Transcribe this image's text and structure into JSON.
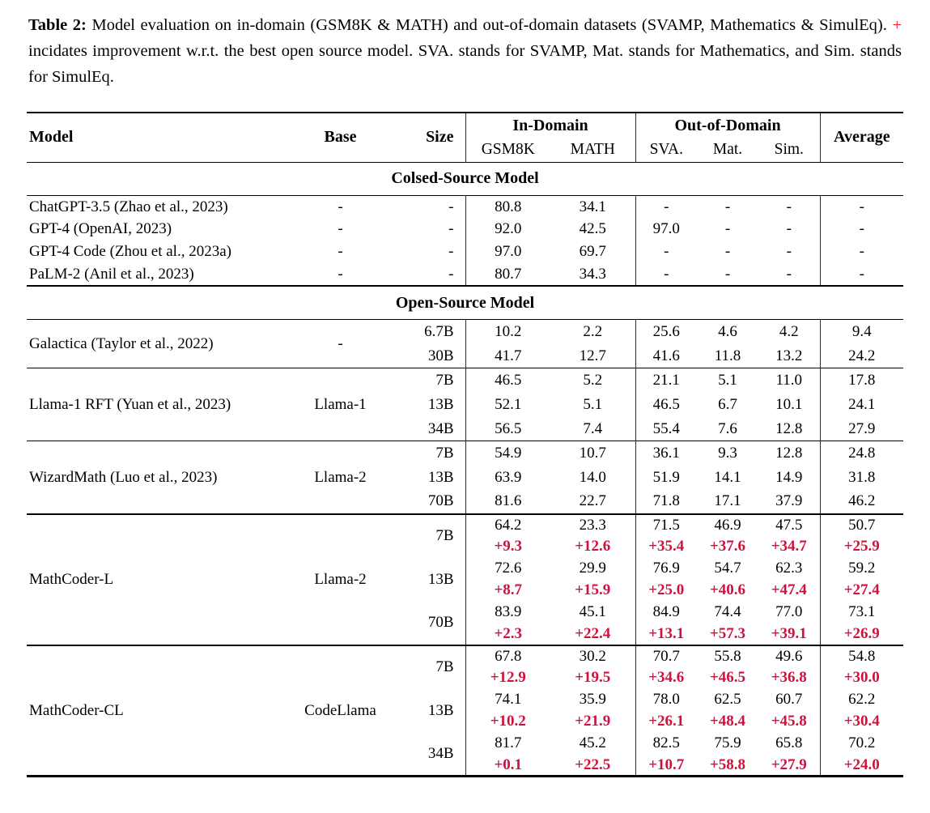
{
  "colors": {
    "delta_red": "#d0113d",
    "caption_plus_red": "#e8232a",
    "rule_black": "#000000"
  },
  "caption": {
    "label": "Table 2:",
    "text_before_plus": "Model evaluation on in-domain (GSM8K & MATH) and out-of-domain datasets (SVAMP, Mathematics & SimulEq).",
    "plus": "+",
    "text_after_plus": "incidates improvement w.r.t. the best open source model. SVA. stands for SVAMP, Mat. stands for Mathematics, and Sim. stands for SimulEq."
  },
  "table": {
    "header": {
      "model": "Model",
      "base": "Base",
      "size": "Size",
      "in_domain": "In-Domain",
      "out_of_domain": "Out-of-Domain",
      "average": "Average",
      "in_cols": [
        "GSM8K",
        "MATH"
      ],
      "out_cols": [
        "SVA.",
        "Mat.",
        "Sim."
      ]
    },
    "sections": [
      {
        "title": "Colsed-Source Model",
        "groups": [
          {
            "model": "ChatGPT-3.5 (Zhao et al., 2023)",
            "base": "-",
            "rows": [
              {
                "size": "-",
                "values": [
                  "80.8",
                  "34.1",
                  "-",
                  "-",
                  "-",
                  "-"
                ]
              }
            ]
          },
          {
            "model": "GPT-4 (OpenAI, 2023)",
            "base": "-",
            "rows": [
              {
                "size": "-",
                "values": [
                  "92.0",
                  "42.5",
                  "97.0",
                  "-",
                  "-",
                  "-"
                ]
              }
            ]
          },
          {
            "model": "GPT-4 Code (Zhou et al., 2023a)",
            "base": "-",
            "rows": [
              {
                "size": "-",
                "values": [
                  "97.0",
                  "69.7",
                  "-",
                  "-",
                  "-",
                  "-"
                ]
              }
            ]
          },
          {
            "model": "PaLM-2 (Anil et al., 2023)",
            "base": "-",
            "rows": [
              {
                "size": "-",
                "values": [
                  "80.7",
                  "34.3",
                  "-",
                  "-",
                  "-",
                  "-"
                ]
              }
            ]
          }
        ]
      },
      {
        "title": "Open-Source Model",
        "groups": [
          {
            "model": "Galactica (Taylor et al., 2022)",
            "base": "-",
            "rows": [
              {
                "size": "6.7B",
                "values": [
                  "10.2",
                  "2.2",
                  "25.6",
                  "4.6",
                  "4.2",
                  "9.4"
                ]
              },
              {
                "size": "30B",
                "values": [
                  "41.7",
                  "12.7",
                  "41.6",
                  "11.8",
                  "13.2",
                  "24.2"
                ]
              }
            ]
          },
          {
            "model": "Llama-1 RFT (Yuan et al., 2023)",
            "base": "Llama-1",
            "rows": [
              {
                "size": "7B",
                "values": [
                  "46.5",
                  "5.2",
                  "21.1",
                  "5.1",
                  "11.0",
                  "17.8"
                ]
              },
              {
                "size": "13B",
                "values": [
                  "52.1",
                  "5.1",
                  "46.5",
                  "6.7",
                  "10.1",
                  "24.1"
                ]
              },
              {
                "size": "34B",
                "values": [
                  "56.5",
                  "7.4",
                  "55.4",
                  "7.6",
                  "12.8",
                  "27.9"
                ]
              }
            ]
          },
          {
            "model": "WizardMath (Luo et al., 2023)",
            "base": "Llama-2",
            "rows": [
              {
                "size": "7B",
                "values": [
                  "54.9",
                  "10.7",
                  "36.1",
                  "9.3",
                  "12.8",
                  "24.8"
                ]
              },
              {
                "size": "13B",
                "values": [
                  "63.9",
                  "14.0",
                  "51.9",
                  "14.1",
                  "14.9",
                  "31.8"
                ]
              },
              {
                "size": "70B",
                "values": [
                  "81.6",
                  "22.7",
                  "71.8",
                  "17.1",
                  "37.9",
                  "46.2"
                ]
              }
            ]
          },
          {
            "model": "MathCoder-L",
            "base": "Llama-2",
            "rows": [
              {
                "size": "7B",
                "values": [
                  "64.2",
                  "23.3",
                  "71.5",
                  "46.9",
                  "47.5",
                  "50.7"
                ],
                "delta": [
                  "+9.3",
                  "+12.6",
                  "+35.4",
                  "+37.6",
                  "+34.7",
                  "+25.9"
                ]
              },
              {
                "size": "13B",
                "values": [
                  "72.6",
                  "29.9",
                  "76.9",
                  "54.7",
                  "62.3",
                  "59.2"
                ],
                "delta": [
                  "+8.7",
                  "+15.9",
                  "+25.0",
                  "+40.6",
                  "+47.4",
                  "+27.4"
                ]
              },
              {
                "size": "70B",
                "values": [
                  "83.9",
                  "45.1",
                  "84.9",
                  "74.4",
                  "77.0",
                  "73.1"
                ],
                "delta": [
                  "+2.3",
                  "+22.4",
                  "+13.1",
                  "+57.3",
                  "+39.1",
                  "+26.9"
                ]
              }
            ]
          },
          {
            "model": "MathCoder-CL",
            "base": "CodeLlama",
            "rows": [
              {
                "size": "7B",
                "values": [
                  "67.8",
                  "30.2",
                  "70.7",
                  "55.8",
                  "49.6",
                  "54.8"
                ],
                "delta": [
                  "+12.9",
                  "+19.5",
                  "+34.6",
                  "+46.5",
                  "+36.8",
                  "+30.0"
                ]
              },
              {
                "size": "13B",
                "values": [
                  "74.1",
                  "35.9",
                  "78.0",
                  "62.5",
                  "60.7",
                  "62.2"
                ],
                "delta": [
                  "+10.2",
                  "+21.9",
                  "+26.1",
                  "+48.4",
                  "+45.8",
                  "+30.4"
                ]
              },
              {
                "size": "34B",
                "values": [
                  "81.7",
                  "45.2",
                  "82.5",
                  "75.9",
                  "65.8",
                  "70.2"
                ],
                "delta": [
                  "+0.1",
                  "+22.5",
                  "+10.7",
                  "+58.8",
                  "+27.9",
                  "+24.0"
                ]
              }
            ]
          }
        ]
      }
    ]
  }
}
